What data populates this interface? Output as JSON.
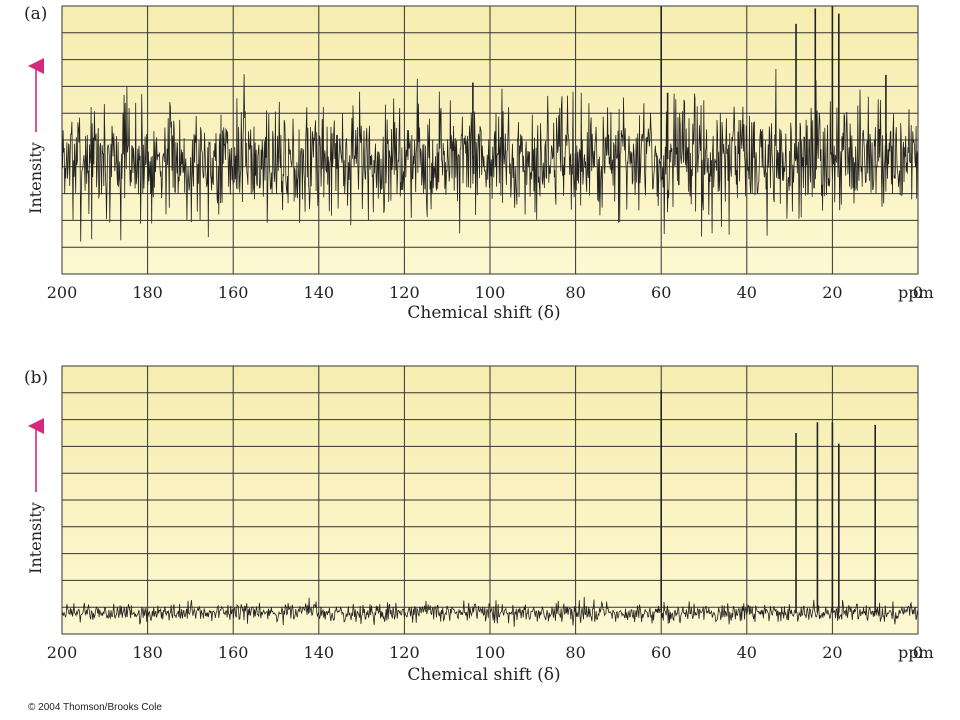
{
  "chart_data": [
    {
      "type": "line",
      "panel": "(a)",
      "xlabel": "Chemical shift (δ)",
      "ylabel": "Intensity",
      "x_unit": "ppm",
      "xlim": [
        200,
        0
      ],
      "x_ticks": [
        200,
        180,
        160,
        140,
        120,
        100,
        80,
        60,
        40,
        20,
        0
      ],
      "ylim": [
        -4.5,
        6
      ],
      "grid": true,
      "baseline": 0,
      "noise": "high",
      "peaks": [
        {
          "x": 104,
          "y": 3.0
        },
        {
          "x": 60,
          "y": 6.0
        },
        {
          "x": 58.5,
          "y": 2.6
        },
        {
          "x": 28.5,
          "y": 5.3
        },
        {
          "x": 24,
          "y": 5.9
        },
        {
          "x": 20,
          "y": 6.0
        },
        {
          "x": 18.5,
          "y": 5.7
        },
        {
          "x": 7.5,
          "y": 3.3
        }
      ],
      "background": "#fdf8d2",
      "background_top": "#f6edb0",
      "trace_color": "#222222",
      "grid_color": "#333333"
    },
    {
      "type": "line",
      "panel": "(b)",
      "xlabel": "Chemical shift (δ)",
      "ylabel": "Intensity",
      "x_unit": "ppm",
      "xlim": [
        200,
        0
      ],
      "x_ticks": [
        200,
        180,
        160,
        140,
        120,
        100,
        80,
        60,
        40,
        20,
        0
      ],
      "ylim": [
        -0.8,
        9.2
      ],
      "grid": true,
      "baseline": 0,
      "noise": "low",
      "peaks": [
        {
          "x": 60,
          "y": 8.3
        },
        {
          "x": 28.5,
          "y": 6.7
        },
        {
          "x": 23.5,
          "y": 7.1
        },
        {
          "x": 20,
          "y": 7.1
        },
        {
          "x": 18.5,
          "y": 6.3
        },
        {
          "x": 10,
          "y": 7.0
        }
      ],
      "background": "#fdf8d2",
      "background_top": "#f6edb0",
      "trace_color": "#222222",
      "grid_color": "#333333"
    }
  ],
  "axis_arrow_color": "#d6287c",
  "credit": "© 2004 Thomson/Brooks Cole"
}
